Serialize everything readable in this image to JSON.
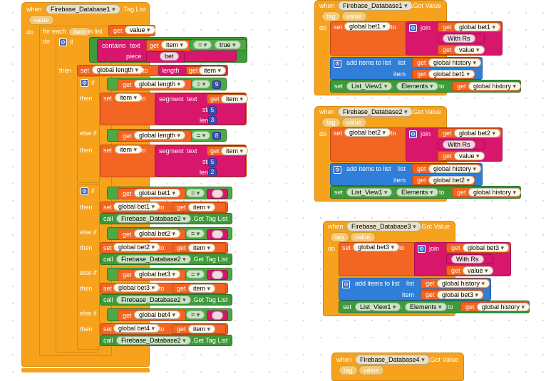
{
  "kw": {
    "when": "when",
    "do": "do",
    "for_each": "for each",
    "in_list": "in list",
    "if": "if",
    "then": "then",
    "else_if": "else if",
    "set": "set",
    "to": "to",
    "get": "get",
    "call": "call",
    "contains": "contains",
    "text": "text",
    "piece": "piece",
    "length": "length",
    "segment": "segment",
    "start": "start",
    "join": "join",
    "add_items": "add items to list",
    "list": "list",
    "item": "item",
    "tag": "tag",
    "value": "value",
    "eq": "=",
    "dot": ".",
    "elements": "Elements"
  },
  "left_block": {
    "component": "Firebase_Database1",
    "event": ".Tag List",
    "param": "value",
    "loop_var": "item",
    "loop_list": "value",
    "contains_piece": "bet",
    "true_label": "true",
    "global_length": "global length",
    "len_check_1": "9",
    "len_check_2": "8",
    "seg1_start": "5",
    "seg1_len": "3",
    "seg2_start": "5",
    "seg2_len": "2",
    "bet_vars": [
      "global bet1",
      "global bet2",
      "global bet3",
      "global bet4"
    ],
    "call_component": "Firebase_Database2",
    "call_method": ".Get Tag List"
  },
  "got_value_blocks": [
    {
      "component": "Firebase_Database1",
      "event": ".Got Value",
      "bet": "global bet1",
      "with": "With Rs",
      "history": "global history",
      "list_view": "List_View1"
    },
    {
      "component": "Firebase_Database2",
      "event": ".Got Value",
      "bet": "global bet2",
      "with": "With Rs",
      "history": "global history",
      "list_view": "List_View1"
    },
    {
      "component": "Firebase_Database3",
      "event": ".Got Value",
      "bet": "global bet3",
      "with": "With Rs",
      "history": "global history",
      "list_view": "List_View1"
    },
    {
      "component": "Firebase_Database4",
      "event": ".Got Value"
    }
  ],
  "colors": {
    "event_orange": "#f6a21c",
    "variable_orange": "#f26522",
    "text_magenta": "#d7166c",
    "list_blue": "#2f7ed8",
    "component_green": "#3f9a3a",
    "logic_green": "#4ea844",
    "number_indigo": "#3f4fb0"
  },
  "icons": [
    "gear-icon",
    "dropdown-arrow-icon"
  ]
}
